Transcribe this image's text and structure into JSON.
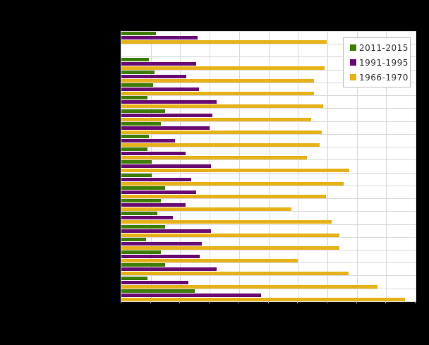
{
  "page": {
    "background_color": "#000000",
    "plot_background_color": "#ffffff",
    "gridline_color": "#d9d9d9"
  },
  "legend": {
    "position": "top-right-inside",
    "items": [
      {
        "label": "2011-2015",
        "color": "#3f7d06"
      },
      {
        "label": "1991-1995",
        "color": "#6a0b74"
      },
      {
        "label": "1966-1970",
        "color": "#e7b219"
      }
    ]
  },
  "chart_data": {
    "type": "bar",
    "orientation": "horizontal",
    "title": "",
    "xlabel": "",
    "ylabel": "",
    "xlim": [
      0,
      10
    ],
    "gridline_interval": 1,
    "grid": "on",
    "legend_position": "top-right-inside",
    "row_count": 21,
    "categories": [
      "",
      "",
      "",
      "",
      "",
      "",
      "",
      "",
      "",
      "",
      "",
      "",
      "",
      "",
      "",
      "",
      "",
      "",
      "",
      "",
      ""
    ],
    "series": [
      {
        "name": "2011-2015",
        "color": "#3f7d06",
        "values": [
          1.18,
          null,
          0.94,
          1.13,
          1.09,
          0.89,
          1.49,
          1.35,
          0.94,
          0.89,
          1.03,
          1.03,
          1.49,
          1.35,
          1.23,
          1.49,
          0.85,
          1.35,
          1.49,
          0.89,
          2.49
        ]
      },
      {
        "name": "1991-1995",
        "color": "#6a0b74",
        "values": [
          2.6,
          null,
          2.55,
          2.2,
          2.64,
          3.24,
          3.09,
          3.0,
          1.82,
          2.18,
          3.04,
          2.37,
          2.54,
          2.19,
          1.74,
          3.05,
          2.74,
          2.65,
          3.24,
          2.28,
          4.76
        ]
      },
      {
        "name": "1966-1970",
        "color": "#e7b219",
        "values": [
          6.99,
          null,
          6.91,
          6.55,
          6.55,
          6.86,
          6.45,
          6.82,
          6.74,
          6.31,
          7.75,
          7.55,
          6.95,
          5.79,
          7.15,
          7.42,
          7.42,
          6.0,
          7.71,
          8.71,
          9.65
        ]
      }
    ]
  }
}
